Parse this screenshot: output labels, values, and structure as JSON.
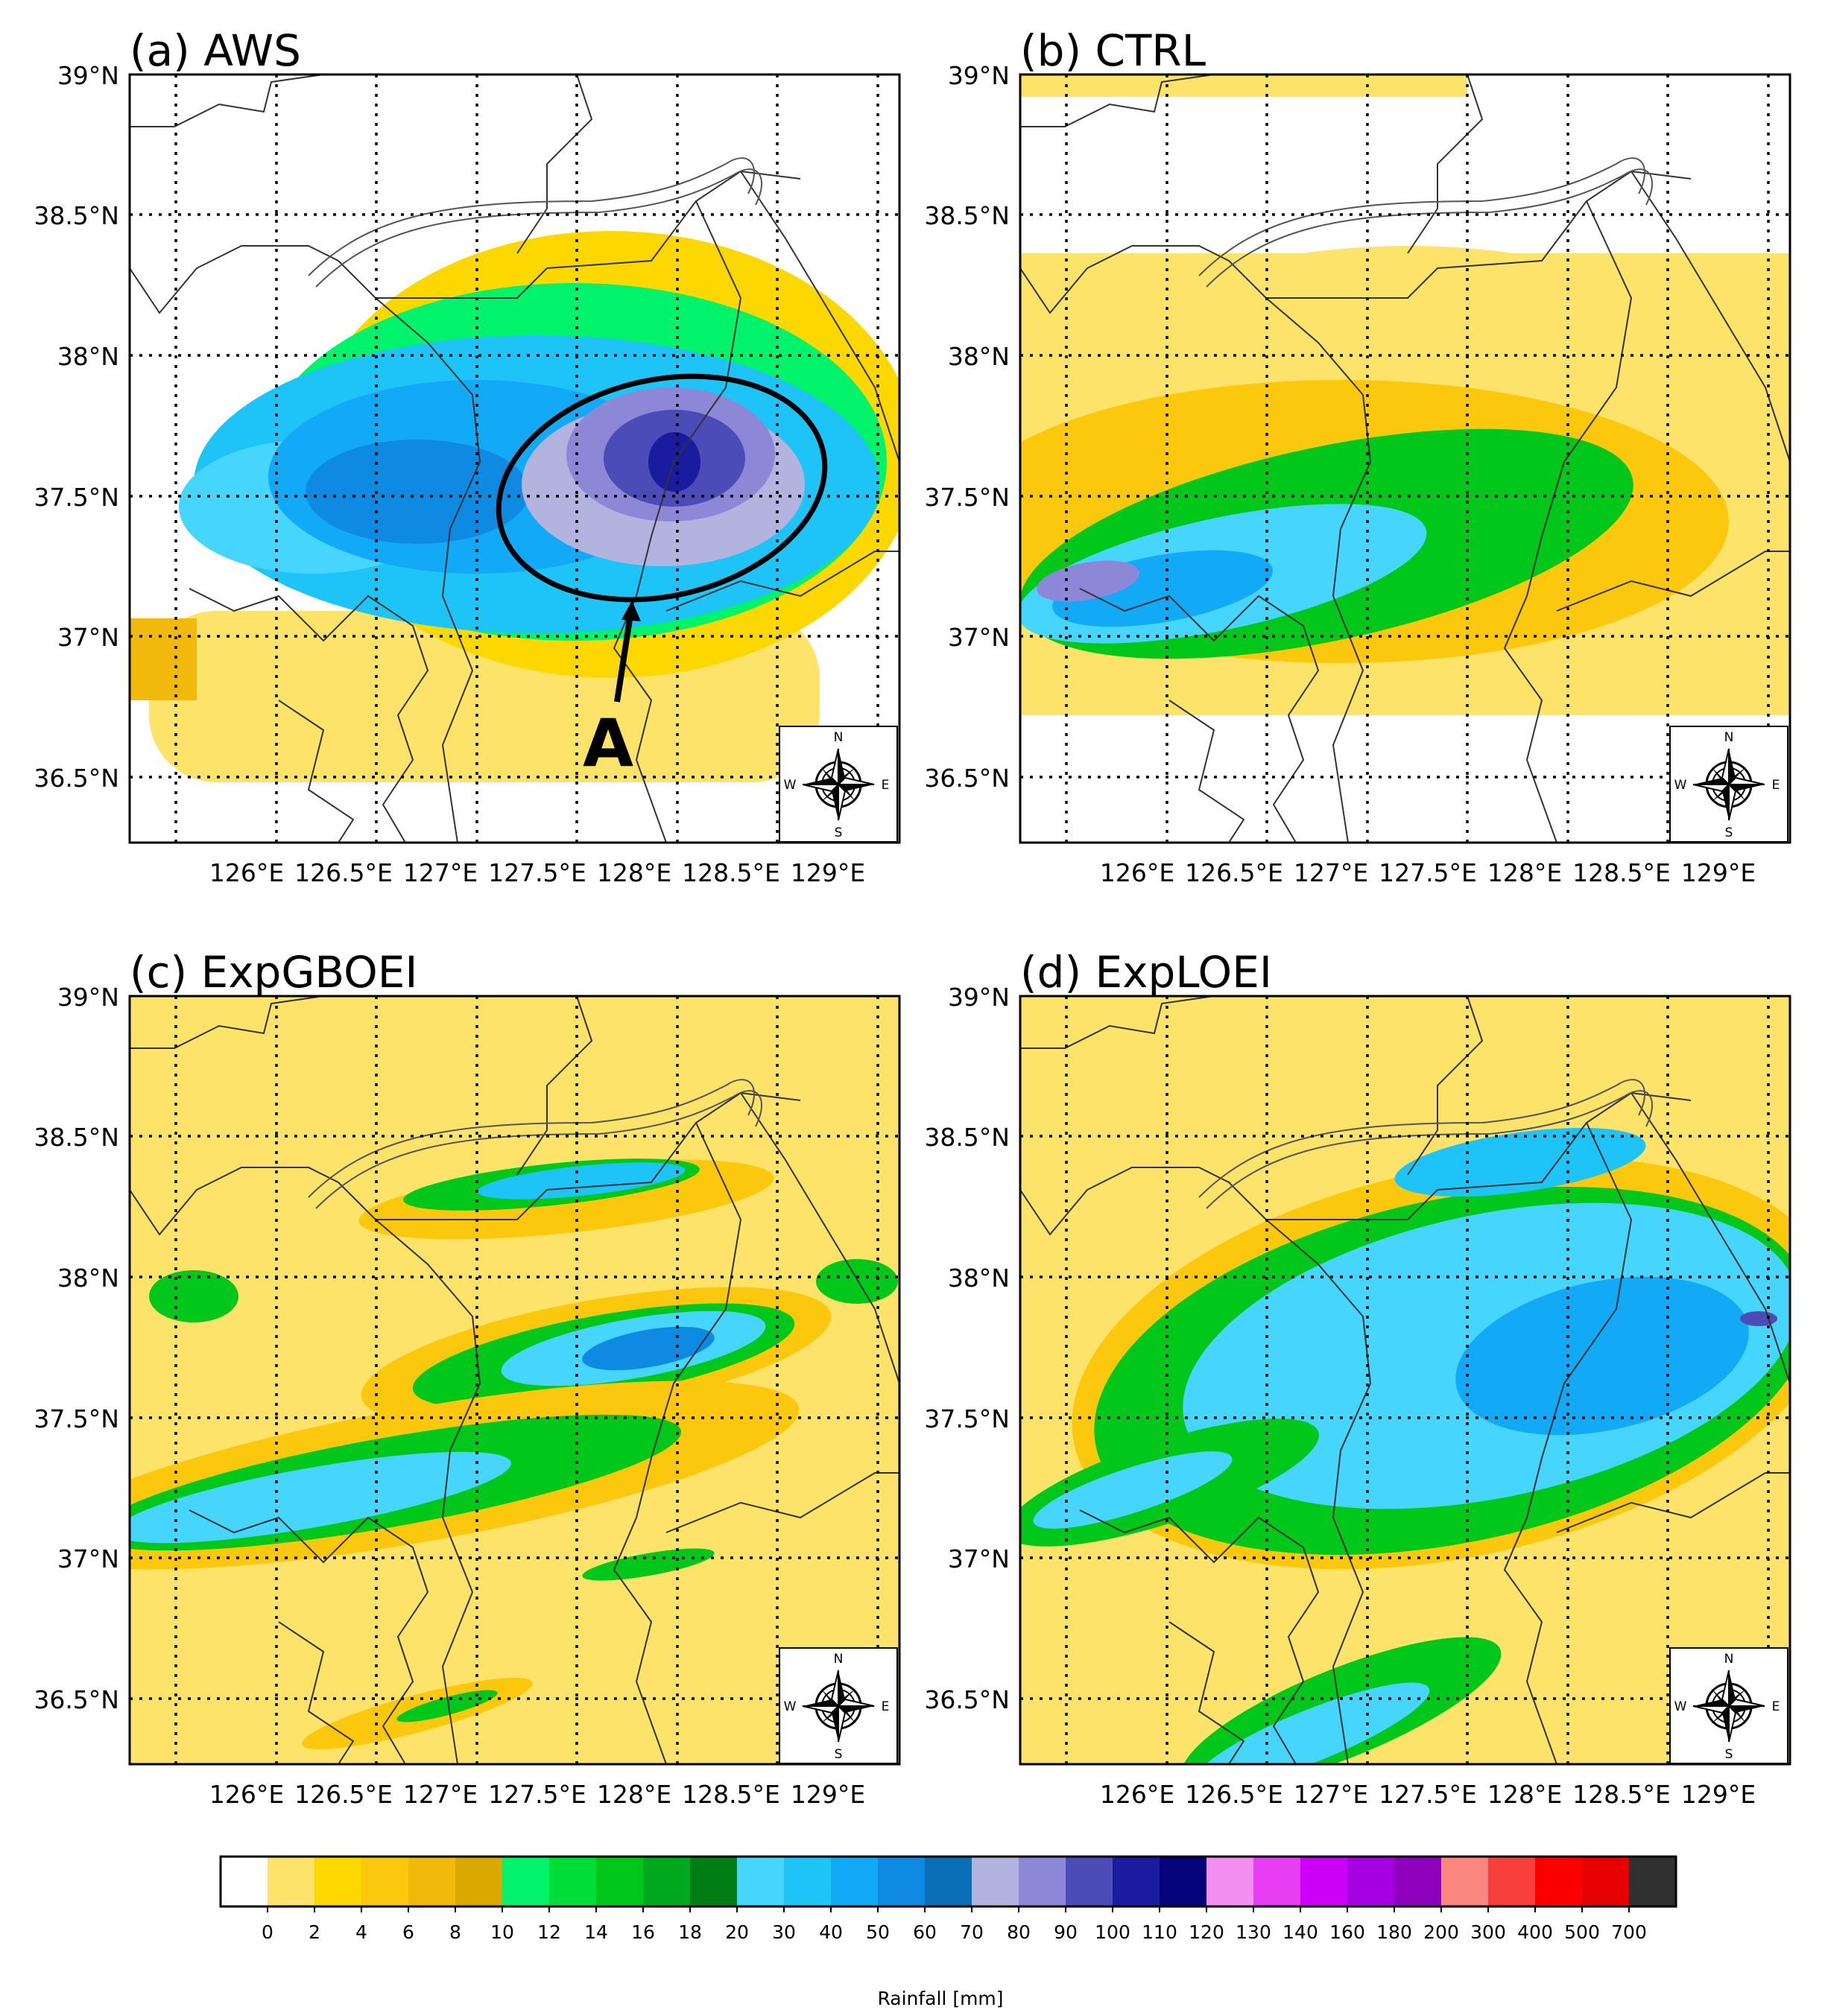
{
  "panels": [
    {
      "id": "a",
      "title": "(a) AWS"
    },
    {
      "id": "b",
      "title": "(b) CTRL"
    },
    {
      "id": "c",
      "title": "(c) ExpGBOEI"
    },
    {
      "id": "d",
      "title": "(d) ExpLOEI"
    }
  ],
  "lat_ticks": [
    "39°N",
    "38.5°N",
    "38°N",
    "37.5°N",
    "37°N",
    "36.5°N"
  ],
  "lon_ticks": [
    "126°E",
    "126.5°E",
    "127°E",
    "127.5°E",
    "128°E",
    "128.5°E",
    "129°E"
  ],
  "annotation": {
    "label": "A"
  },
  "compass": {
    "n": "N",
    "s": "S",
    "e": "E",
    "w": "W"
  },
  "colorbar": {
    "label": "Rainfall [mm]",
    "levels": [
      "0",
      "2",
      "4",
      "6",
      "8",
      "10",
      "12",
      "14",
      "16",
      "18",
      "20",
      "30",
      "40",
      "50",
      "60",
      "70",
      "80",
      "90",
      "100",
      "110",
      "120",
      "130",
      "140",
      "160",
      "180",
      "200",
      "300",
      "400",
      "500",
      "700"
    ],
    "colors": [
      "#ffffff",
      "#fde36a",
      "#fcd700",
      "#fbc80e",
      "#f0b90c",
      "#d9a900",
      "#00f36a",
      "#00dd36",
      "#00c71a",
      "#00a81e",
      "#007e16",
      "#46d5fc",
      "#1ec4f7",
      "#12a9f7",
      "#0f8ae2",
      "#0a6fb6",
      "#b3b3e0",
      "#8d87d8",
      "#4b4cb7",
      "#1b1b9f",
      "#05037b",
      "#f28ff0",
      "#e83ef3",
      "#cc00f6",
      "#a600e2",
      "#8d01bd",
      "#fa8680",
      "#f83f3c",
      "#fa0000",
      "#e60000",
      "#313131"
    ]
  },
  "map_colors": {
    "light_yellow": "#fde36a",
    "yellow": "#fcd700",
    "orange": "#fbc80e",
    "dark_orange": "#f0b90c",
    "green_light": "#00f36a",
    "green": "#00c71a",
    "green_dark": "#007e16",
    "cyan": "#46d5fc",
    "blue": "#1ec4f7",
    "blue2": "#12a9f7",
    "blue_dark": "#0f8ae2",
    "lavender": "#b3b3e0",
    "purple": "#8d87d8",
    "indigo": "#4b4cb7",
    "navy": "#1b1b9f"
  }
}
